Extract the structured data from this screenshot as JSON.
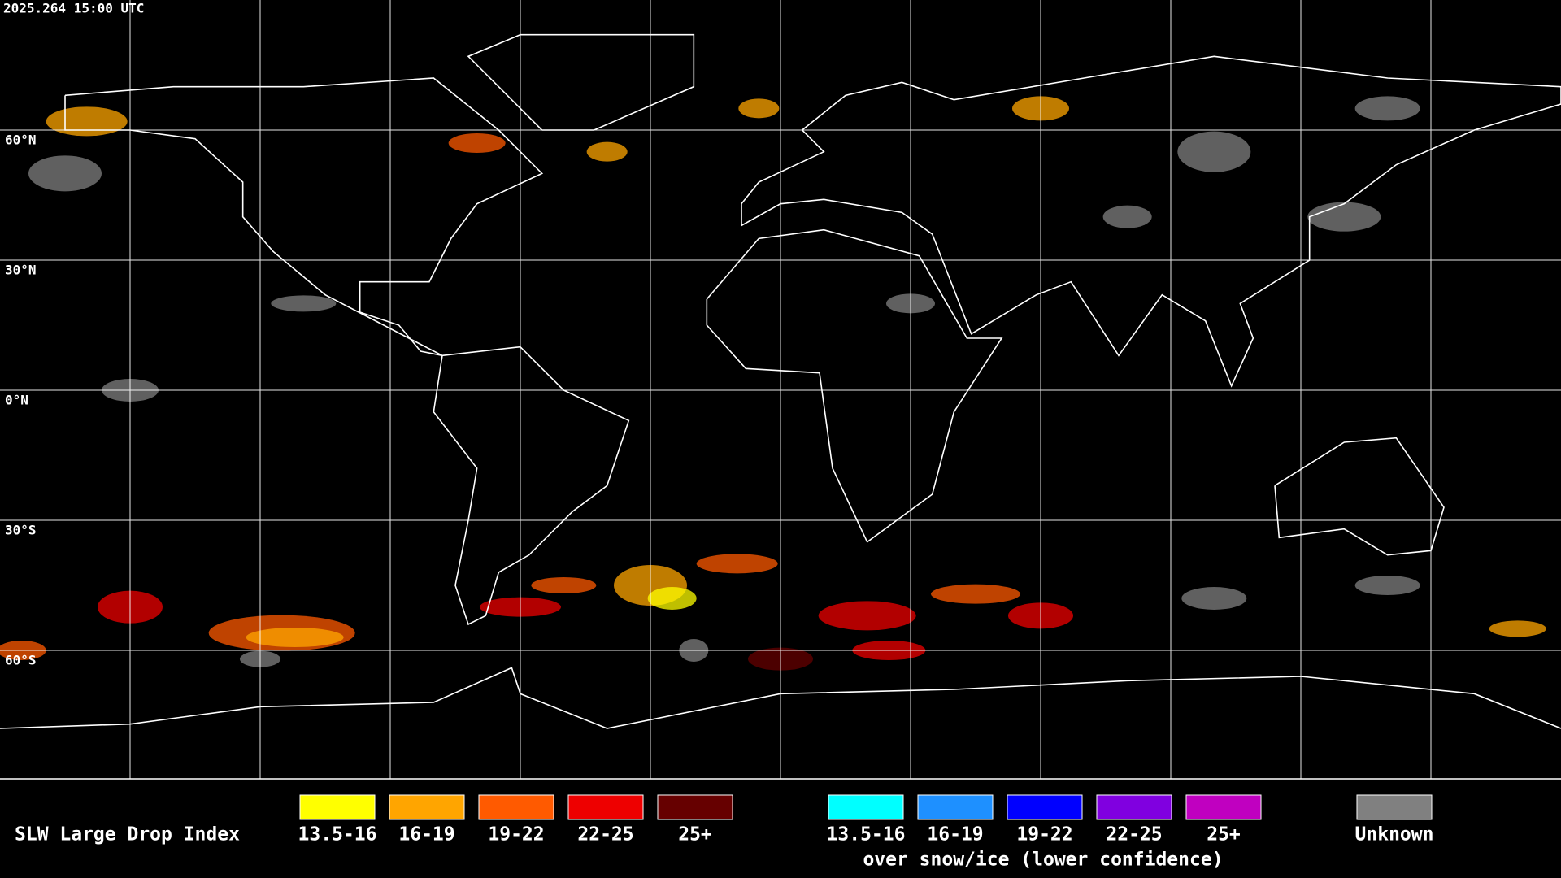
{
  "header": {
    "timestamp": "2025.264 15:00 UTC"
  },
  "lat_labels": [
    "60°N",
    "30°N",
    "0°N",
    "30°S",
    "60°S"
  ],
  "legend": {
    "title": "SLW Large Drop Index",
    "groups": [
      {
        "items": [
          {
            "label": "13.5-16",
            "color": "#ffff00"
          },
          {
            "label": "16-19",
            "color": "#ffa500"
          },
          {
            "label": "19-22",
            "color": "#ff5a00"
          },
          {
            "label": "22-25",
            "color": "#ee0000"
          },
          {
            "label": "25+",
            "color": "#660000"
          }
        ]
      },
      {
        "items": [
          {
            "label": "13.5-16",
            "color": "#00ffff"
          },
          {
            "label": "16-19",
            "color": "#1e90ff"
          },
          {
            "label": "19-22",
            "color": "#0000ff"
          },
          {
            "label": "22-25",
            "color": "#8000e0"
          },
          {
            "label": "25+",
            "color": "#c000c0"
          }
        ],
        "caption": "over snow/ice (lower confidence)"
      }
    ],
    "unknown": {
      "label": "Unknown",
      "color": "#808080"
    }
  }
}
